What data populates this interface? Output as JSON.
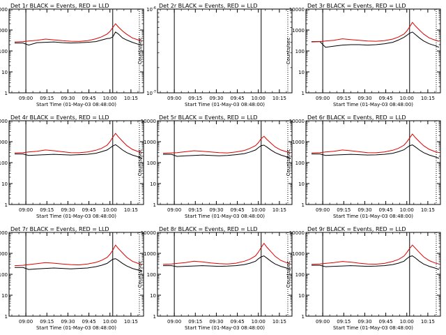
{
  "figure": {
    "xlabel": "Start Time (01-May-03 08:48:00)",
    "ylabel": "Counts/sec",
    "x_ticks": [
      "09:00",
      "09:15",
      "09:30",
      "09:45",
      "10:00",
      "10:15"
    ]
  },
  "chart_data": [
    {
      "type": "line",
      "title": "Det 1r BLACK = Events, RED = LLD",
      "xlabel": "Start Time (01-May-03 08:48:00)",
      "ylabel": "Counts/sec",
      "y_scale": "log",
      "x": [
        "08:52",
        "08:58",
        "09:02",
        "09:08",
        "09:14",
        "09:20",
        "09:26",
        "09:32",
        "09:38",
        "09:44",
        "09:50",
        "09:54",
        "09:58",
        "10:00",
        "10:02",
        "10:04",
        "10:06",
        "10:09",
        "10:12",
        "10:16",
        "10:20",
        "10:23"
      ],
      "x_ticks": [
        "09:00",
        "09:15",
        "09:30",
        "09:45",
        "10:00",
        "10:15"
      ],
      "ylim": [
        1,
        10000
      ],
      "y_ticks": [
        "1",
        "10",
        "100",
        "1000",
        "10000"
      ],
      "vlines": [
        "09:00",
        "10:02"
      ],
      "series": [
        {
          "name": "Events",
          "color": "#000000",
          "values": [
            240,
            240,
            190,
            250,
            260,
            270,
            250,
            240,
            245,
            260,
            280,
            330,
            390,
            400,
            470,
            800,
            650,
            420,
            330,
            260,
            210,
            180
          ]
        },
        {
          "name": "LLD",
          "color": "#dd0000",
          "values": [
            270,
            280,
            300,
            320,
            370,
            340,
            310,
            290,
            285,
            310,
            380,
            470,
            640,
            860,
            1300,
            2000,
            1400,
            900,
            620,
            420,
            340,
            300
          ]
        }
      ]
    },
    {
      "type": "line",
      "title": "Det 2r BLACK = Events, RED = LLD",
      "xlabel": "Start Time (01-May-03 08:48:00)",
      "ylabel": "Counts/sec",
      "y_scale": "log",
      "x": [],
      "x_ticks": [
        "09:00",
        "09:15",
        "09:30",
        "09:45",
        "10:00",
        "10:15"
      ],
      "ylim": [
        1e-07,
        1e-06
      ],
      "y_ticks": [
        "10^-7",
        "10^-6"
      ],
      "vlines": [
        "09:00",
        "10:02"
      ],
      "series": []
    },
    {
      "type": "line",
      "title": "Det 3r BLACK = Events, RED = LLD",
      "xlabel": "Start Time (01-May-03 08:48:00)",
      "ylabel": "Counts/sec",
      "y_scale": "log",
      "x": [
        "08:52",
        "08:58",
        "09:02",
        "09:08",
        "09:14",
        "09:20",
        "09:26",
        "09:32",
        "09:38",
        "09:44",
        "09:50",
        "09:54",
        "09:58",
        "10:00",
        "10:02",
        "10:04",
        "10:06",
        "10:09",
        "10:12",
        "10:16",
        "10:20",
        "10:23"
      ],
      "x_ticks": [
        "09:00",
        "09:15",
        "09:30",
        "09:45",
        "10:00",
        "10:15"
      ],
      "ylim": [
        1,
        10000
      ],
      "y_ticks": [
        "1",
        "10",
        "100",
        "1000",
        "10000"
      ],
      "vlines": [
        "09:00",
        "10:02"
      ],
      "series": [
        {
          "name": "Events",
          "color": "#000000",
          "values": [
            280,
            280,
            150,
            170,
            190,
            200,
            200,
            190,
            200,
            220,
            260,
            330,
            450,
            560,
            700,
            800,
            620,
            420,
            300,
            220,
            180,
            150
          ]
        },
        {
          "name": "LLD",
          "color": "#dd0000",
          "values": [
            270,
            280,
            300,
            320,
            380,
            350,
            320,
            300,
            290,
            310,
            370,
            460,
            640,
            900,
            1400,
            2300,
            1600,
            1000,
            640,
            420,
            330,
            290
          ]
        }
      ]
    },
    {
      "type": "line",
      "title": "Det 4r BLACK = Events, RED = LLD",
      "xlabel": "Start Time (01-May-03 08:48:00)",
      "ylabel": "Counts/sec",
      "y_scale": "log",
      "x": [
        "08:52",
        "08:58",
        "09:02",
        "09:08",
        "09:14",
        "09:20",
        "09:26",
        "09:32",
        "09:38",
        "09:44",
        "09:50",
        "09:54",
        "09:58",
        "10:00",
        "10:02",
        "10:04",
        "10:06",
        "10:09",
        "10:12",
        "10:16",
        "10:20",
        "10:23"
      ],
      "x_ticks": [
        "09:00",
        "09:15",
        "09:30",
        "09:45",
        "10:00",
        "10:15"
      ],
      "ylim": [
        1,
        10000
      ],
      "y_ticks": [
        "1",
        "10",
        "100",
        "1000",
        "10000"
      ],
      "vlines": [
        "09:00",
        "10:02"
      ],
      "series": [
        {
          "name": "Events",
          "color": "#000000",
          "values": [
            260,
            260,
            220,
            230,
            240,
            250,
            240,
            230,
            240,
            250,
            280,
            330,
            400,
            500,
            620,
            720,
            580,
            400,
            300,
            230,
            190,
            160
          ]
        },
        {
          "name": "LLD",
          "color": "#dd0000",
          "values": [
            290,
            300,
            320,
            350,
            400,
            370,
            330,
            300,
            295,
            320,
            390,
            480,
            680,
            1000,
            1600,
            2500,
            1700,
            1050,
            650,
            430,
            340,
            300
          ]
        }
      ]
    },
    {
      "type": "line",
      "title": "Det 5r BLACK = Events, RED = LLD",
      "xlabel": "Start Time (01-May-03 08:48:00)",
      "ylabel": "Counts/sec",
      "y_scale": "log",
      "x": [
        "08:52",
        "08:58",
        "09:02",
        "09:08",
        "09:14",
        "09:20",
        "09:26",
        "09:32",
        "09:38",
        "09:44",
        "09:50",
        "09:54",
        "09:58",
        "10:00",
        "10:02",
        "10:04",
        "10:06",
        "10:09",
        "10:12",
        "10:16",
        "10:20",
        "10:23"
      ],
      "x_ticks": [
        "09:00",
        "09:15",
        "09:30",
        "09:45",
        "10:00",
        "10:15"
      ],
      "ylim": [
        1,
        10000
      ],
      "y_ticks": [
        "1",
        "10",
        "100",
        "1000",
        "10000"
      ],
      "vlines": [
        "09:00",
        "10:02"
      ],
      "series": [
        {
          "name": "Events",
          "color": "#000000",
          "values": [
            250,
            250,
            200,
            210,
            220,
            230,
            220,
            210,
            220,
            240,
            270,
            320,
            400,
            520,
            650,
            680,
            560,
            400,
            300,
            230,
            190,
            160
          ]
        },
        {
          "name": "LLD",
          "color": "#dd0000",
          "values": [
            280,
            290,
            300,
            330,
            370,
            350,
            320,
            300,
            290,
            320,
            380,
            480,
            650,
            900,
            1400,
            1800,
            1300,
            850,
            560,
            400,
            330,
            290
          ]
        }
      ]
    },
    {
      "type": "line",
      "title": "Det 6r BLACK = Events, RED = LLD",
      "xlabel": "Start Time (01-May-03 08:48:00)",
      "ylabel": "Counts/sec",
      "y_scale": "log",
      "x": [
        "08:52",
        "08:58",
        "09:02",
        "09:08",
        "09:14",
        "09:20",
        "09:26",
        "09:32",
        "09:38",
        "09:44",
        "09:50",
        "09:54",
        "09:58",
        "10:00",
        "10:02",
        "10:04",
        "10:06",
        "10:09",
        "10:12",
        "10:16",
        "10:20",
        "10:23"
      ],
      "x_ticks": [
        "09:00",
        "09:15",
        "09:30",
        "09:45",
        "10:00",
        "10:15"
      ],
      "ylim": [
        1,
        10000
      ],
      "y_ticks": [
        "1",
        "10",
        "100",
        "1000",
        "10000"
      ],
      "vlines": [
        "09:00",
        "10:02"
      ],
      "series": [
        {
          "name": "Events",
          "color": "#000000",
          "values": [
            260,
            260,
            220,
            230,
            240,
            250,
            240,
            230,
            235,
            250,
            280,
            330,
            410,
            520,
            640,
            700,
            570,
            400,
            300,
            230,
            190,
            160
          ]
        },
        {
          "name": "LLD",
          "color": "#dd0000",
          "values": [
            290,
            300,
            320,
            350,
            400,
            370,
            330,
            300,
            295,
            320,
            390,
            480,
            680,
            980,
            1500,
            2300,
            1600,
            1000,
            640,
            430,
            340,
            300
          ]
        }
      ]
    },
    {
      "type": "line",
      "title": "Det 7r BLACK = Events, RED = LLD",
      "xlabel": "Start Time (01-May-03 08:48:00)",
      "ylabel": "Counts/sec",
      "y_scale": "log",
      "x": [
        "08:52",
        "08:58",
        "09:02",
        "09:08",
        "09:14",
        "09:20",
        "09:26",
        "09:32",
        "09:38",
        "09:44",
        "09:50",
        "09:54",
        "09:58",
        "10:00",
        "10:02",
        "10:04",
        "10:06",
        "10:09",
        "10:12",
        "10:16",
        "10:20",
        "10:23"
      ],
      "x_ticks": [
        "09:00",
        "09:15",
        "09:30",
        "09:45",
        "10:00",
        "10:15"
      ],
      "ylim": [
        1,
        10000
      ],
      "y_ticks": [
        "1",
        "10",
        "100",
        "1000",
        "10000"
      ],
      "vlines": [
        "09:00",
        "10:02"
      ],
      "series": [
        {
          "name": "Events",
          "color": "#000000",
          "values": [
            210,
            210,
            170,
            180,
            190,
            200,
            190,
            180,
            190,
            200,
            230,
            270,
            330,
            420,
            520,
            560,
            460,
            330,
            250,
            190,
            160,
            140
          ]
        },
        {
          "name": "LLD",
          "color": "#dd0000",
          "values": [
            260,
            270,
            290,
            320,
            360,
            340,
            310,
            290,
            280,
            310,
            370,
            460,
            640,
            900,
            1400,
            2500,
            1700,
            1050,
            650,
            420,
            330,
            290
          ]
        }
      ]
    },
    {
      "type": "line",
      "title": "Det 8r BLACK = Events, RED = LLD",
      "xlabel": "Start Time (01-May-03 08:48:00)",
      "ylabel": "Counts/sec",
      "y_scale": "log",
      "x": [
        "08:52",
        "08:58",
        "09:02",
        "09:08",
        "09:14",
        "09:20",
        "09:26",
        "09:32",
        "09:38",
        "09:44",
        "09:50",
        "09:54",
        "09:58",
        "10:00",
        "10:02",
        "10:04",
        "10:06",
        "10:09",
        "10:12",
        "10:16",
        "10:20",
        "10:23"
      ],
      "x_ticks": [
        "09:00",
        "09:15",
        "09:30",
        "09:45",
        "10:00",
        "10:15"
      ],
      "ylim": [
        1,
        10000
      ],
      "y_ticks": [
        "1",
        "10",
        "100",
        "1000",
        "10000"
      ],
      "vlines": [
        "09:00",
        "10:02"
      ],
      "series": [
        {
          "name": "Events",
          "color": "#000000",
          "values": [
            260,
            260,
            230,
            240,
            250,
            260,
            250,
            240,
            245,
            260,
            290,
            340,
            420,
            550,
            680,
            750,
            600,
            420,
            310,
            240,
            200,
            170
          ]
        },
        {
          "name": "LLD",
          "color": "#dd0000",
          "values": [
            300,
            310,
            330,
            360,
            420,
            390,
            350,
            320,
            310,
            340,
            420,
            530,
            760,
            1150,
            1900,
            3000,
            2000,
            1200,
            720,
            460,
            360,
            310
          ]
        }
      ]
    },
    {
      "type": "line",
      "title": "Det 9r BLACK = Events, RED = LLD",
      "xlabel": "Start Time (01-May-03 08:48:00)",
      "ylabel": "Counts/sec",
      "y_scale": "log",
      "x": [
        "08:52",
        "08:58",
        "09:02",
        "09:08",
        "09:14",
        "09:20",
        "09:26",
        "09:32",
        "09:38",
        "09:44",
        "09:50",
        "09:54",
        "09:58",
        "10:00",
        "10:02",
        "10:04",
        "10:06",
        "10:09",
        "10:12",
        "10:16",
        "10:20",
        "10:23"
      ],
      "x_ticks": [
        "09:00",
        "09:15",
        "09:30",
        "09:45",
        "10:00",
        "10:15"
      ],
      "ylim": [
        1,
        10000
      ],
      "y_ticks": [
        "1",
        "10",
        "100",
        "1000",
        "10000"
      ],
      "vlines": [
        "09:00",
        "10:02"
      ],
      "series": [
        {
          "name": "Events",
          "color": "#000000",
          "values": [
            270,
            270,
            230,
            240,
            250,
            260,
            250,
            240,
            245,
            260,
            290,
            340,
            420,
            560,
            700,
            760,
            610,
            420,
            310,
            240,
            200,
            170
          ]
        },
        {
          "name": "LLD",
          "color": "#dd0000",
          "values": [
            300,
            310,
            330,
            360,
            410,
            380,
            340,
            310,
            305,
            330,
            410,
            510,
            740,
            1100,
            1700,
            2500,
            1800,
            1100,
            680,
            450,
            350,
            310
          ]
        }
      ]
    }
  ]
}
